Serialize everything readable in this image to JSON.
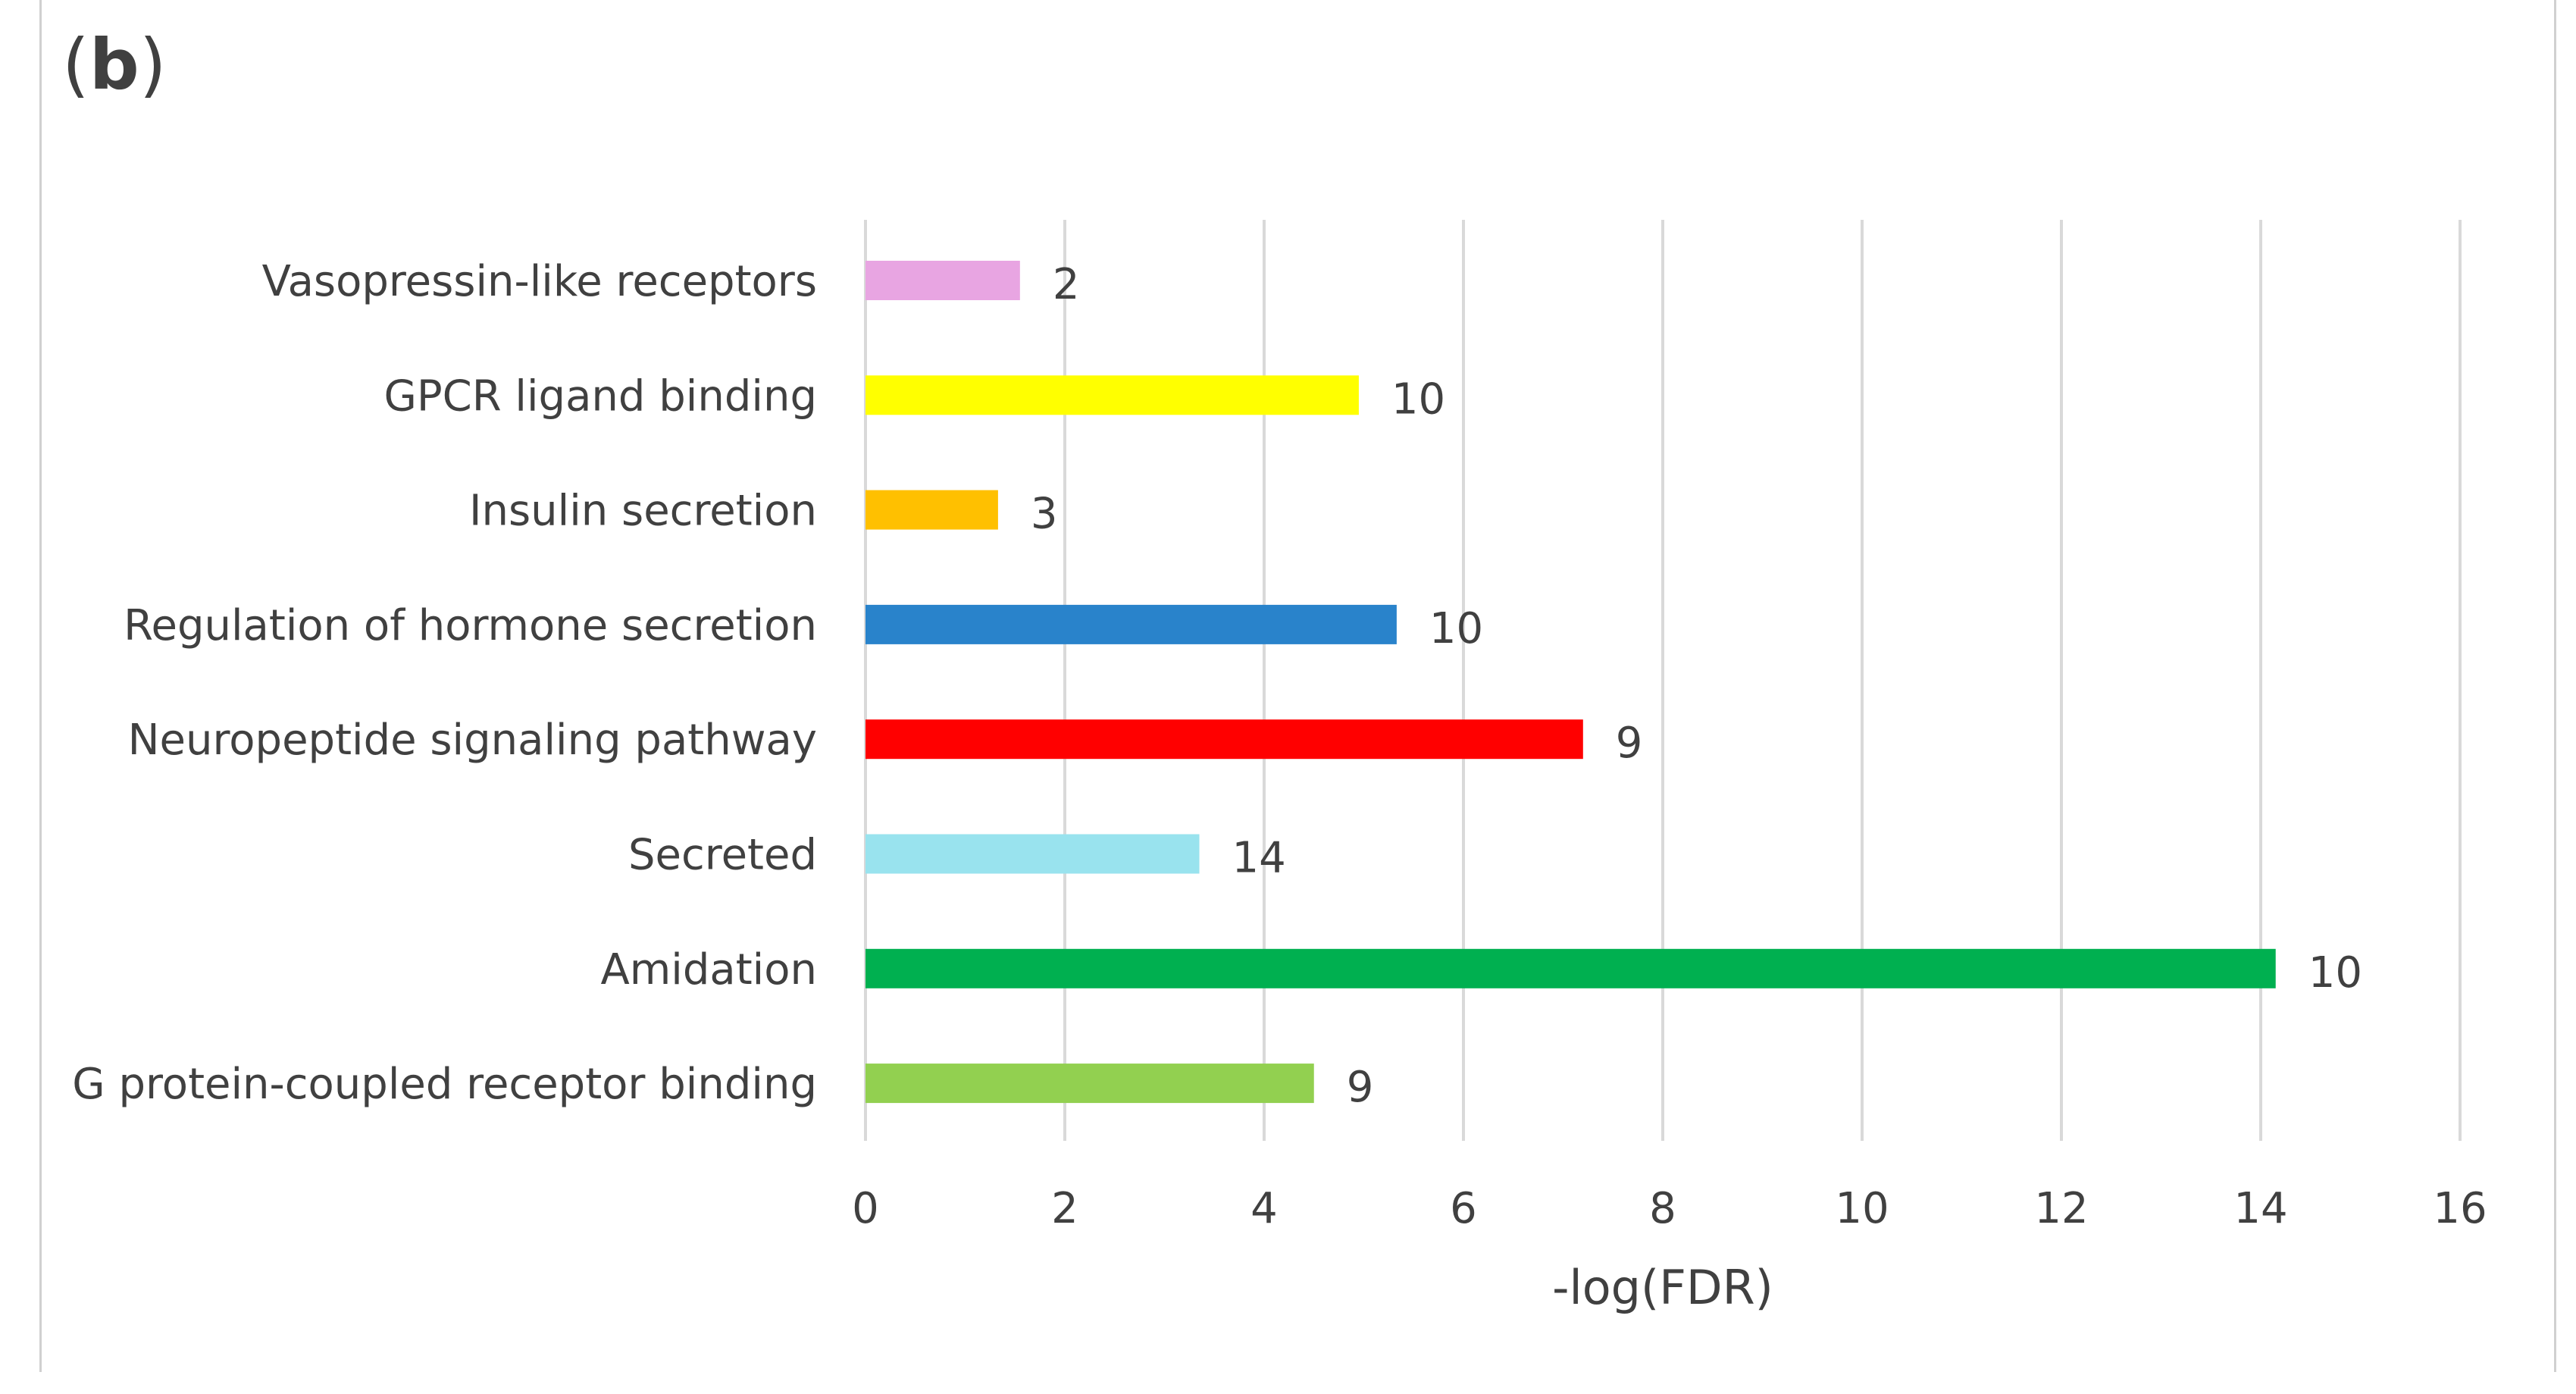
{
  "panel_label": {
    "open": "(",
    "letter": "b",
    "close": ")"
  },
  "chart_data": {
    "type": "bar",
    "orientation": "horizontal",
    "xlabel": "-log(FDR)",
    "xlim": [
      0,
      16
    ],
    "xticks": [
      0,
      2,
      4,
      6,
      8,
      10,
      12,
      14,
      16
    ],
    "grid": true,
    "categories": [
      "Vasopressin-like receptors",
      "GPCR ligand binding",
      "Insulin secretion",
      "Regulation of hormone secretion",
      "Neuropeptide signaling pathway",
      "Secreted",
      "Amidation",
      "G protein-coupled receptor binding"
    ],
    "values": [
      1.55,
      4.95,
      1.33,
      5.33,
      7.2,
      3.35,
      14.15,
      4.5
    ],
    "data_labels": [
      "2",
      "10",
      "3",
      "10",
      "9",
      "14",
      "10",
      "9"
    ],
    "colors": [
      "#e8a5e2",
      "#ffff00",
      "#ffc000",
      "#2983cb",
      "#ff0000",
      "#99e3ee",
      "#00b050",
      "#92d050"
    ]
  }
}
